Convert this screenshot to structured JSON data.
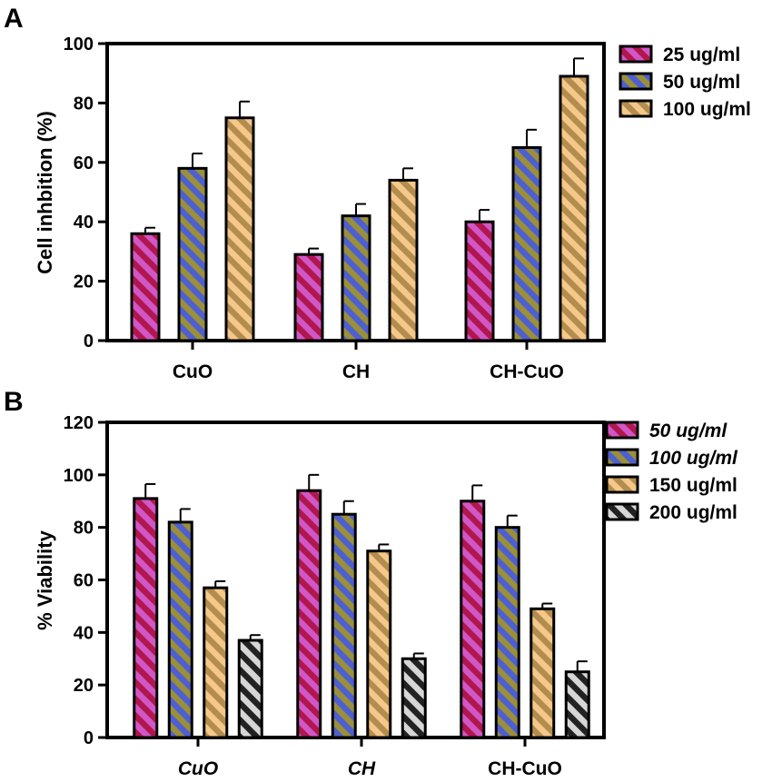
{
  "colors": {
    "s25": [
      "#b0174f",
      "#d157c6"
    ],
    "s50": [
      "#4d5fd1",
      "#9a8f3a"
    ],
    "s100": [
      "#b38d4f",
      "#f5c889"
    ],
    "s200": [
      "#222222",
      "#d6d6d6"
    ]
  },
  "chart_data": [
    {
      "panel": "A",
      "type": "bar",
      "ylabel": "Cell inhbition (%)",
      "ylim": [
        0,
        100
      ],
      "yticks": [
        "0",
        "20",
        "40",
        "60",
        "80",
        "100"
      ],
      "categories": [
        "CuO",
        "CH",
        "CH-CuO"
      ],
      "category_italic": [
        false,
        false,
        false
      ],
      "series": [
        {
          "name": "25 ug/ml",
          "italic": false,
          "color_key": "s25",
          "values": [
            36,
            29,
            40
          ],
          "errors": [
            2,
            2,
            4
          ]
        },
        {
          "name": "50 ug/ml",
          "italic": false,
          "color_key": "s50",
          "values": [
            58,
            42,
            65
          ],
          "errors": [
            5,
            4,
            6
          ]
        },
        {
          "name": "100 ug/ml",
          "italic": false,
          "color_key": "s100",
          "values": [
            75,
            54,
            89
          ],
          "errors": [
            5.5,
            4,
            6
          ]
        }
      ]
    },
    {
      "panel": "B",
      "type": "bar",
      "ylabel": "% Viability",
      "ylim": [
        0,
        120
      ],
      "yticks": [
        "0",
        "20",
        "40",
        "60",
        "80",
        "100",
        "120"
      ],
      "categories": [
        "CuO",
        "CH",
        "CH-CuO"
      ],
      "category_italic": [
        true,
        true,
        false
      ],
      "series": [
        {
          "name": "50 ug/ml",
          "italic": true,
          "color_key": "s25",
          "values": [
            91,
            94,
            90
          ],
          "errors": [
            5.5,
            6,
            6
          ]
        },
        {
          "name": "100 ug/ml",
          "italic": true,
          "color_key": "s50",
          "values": [
            82,
            85,
            80
          ],
          "errors": [
            5,
            5,
            4.5
          ]
        },
        {
          "name": "150 ug/ml",
          "italic": false,
          "color_key": "s100",
          "values": [
            57,
            71,
            49
          ],
          "errors": [
            2.5,
            2.5,
            2
          ]
        },
        {
          "name": "200 ug/ml",
          "italic": false,
          "color_key": "s200",
          "values": [
            37,
            30,
            25
          ],
          "errors": [
            2,
            2,
            4
          ]
        }
      ]
    }
  ]
}
